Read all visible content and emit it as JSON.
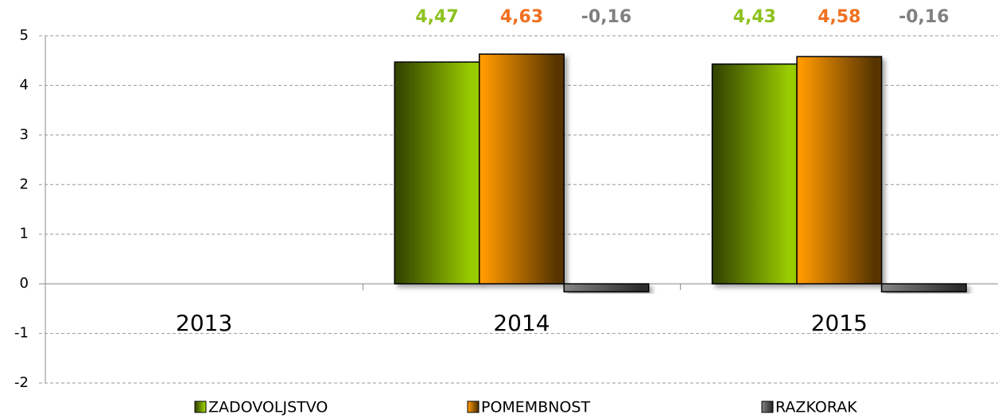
{
  "chart_data": {
    "type": "bar",
    "categories": [
      "2013",
      "2014",
      "2015"
    ],
    "series": [
      {
        "name": "ZADOVOLJSTVO",
        "color": "#99cc00",
        "label_color": "#8dc21f",
        "values": [
          null,
          4.47,
          4.43
        ],
        "value_labels": [
          null,
          "4,47",
          "4,43"
        ]
      },
      {
        "name": "POMEMBNOST",
        "color": "#ff9900",
        "label_color": "#f07020",
        "values": [
          null,
          4.63,
          4.58
        ],
        "value_labels": [
          null,
          "4,63",
          "4,58"
        ]
      },
      {
        "name": "RAZKORAK",
        "color": "#808080",
        "label_color": "#808080",
        "values": [
          null,
          -0.16,
          -0.16
        ],
        "value_labels": [
          null,
          "-0,16",
          "-0,16"
        ]
      }
    ],
    "ylim": [
      -2,
      5
    ],
    "yticks": [
      -2,
      -1,
      0,
      1,
      2,
      3,
      4,
      5
    ],
    "grid": true,
    "legend": "bottom"
  }
}
